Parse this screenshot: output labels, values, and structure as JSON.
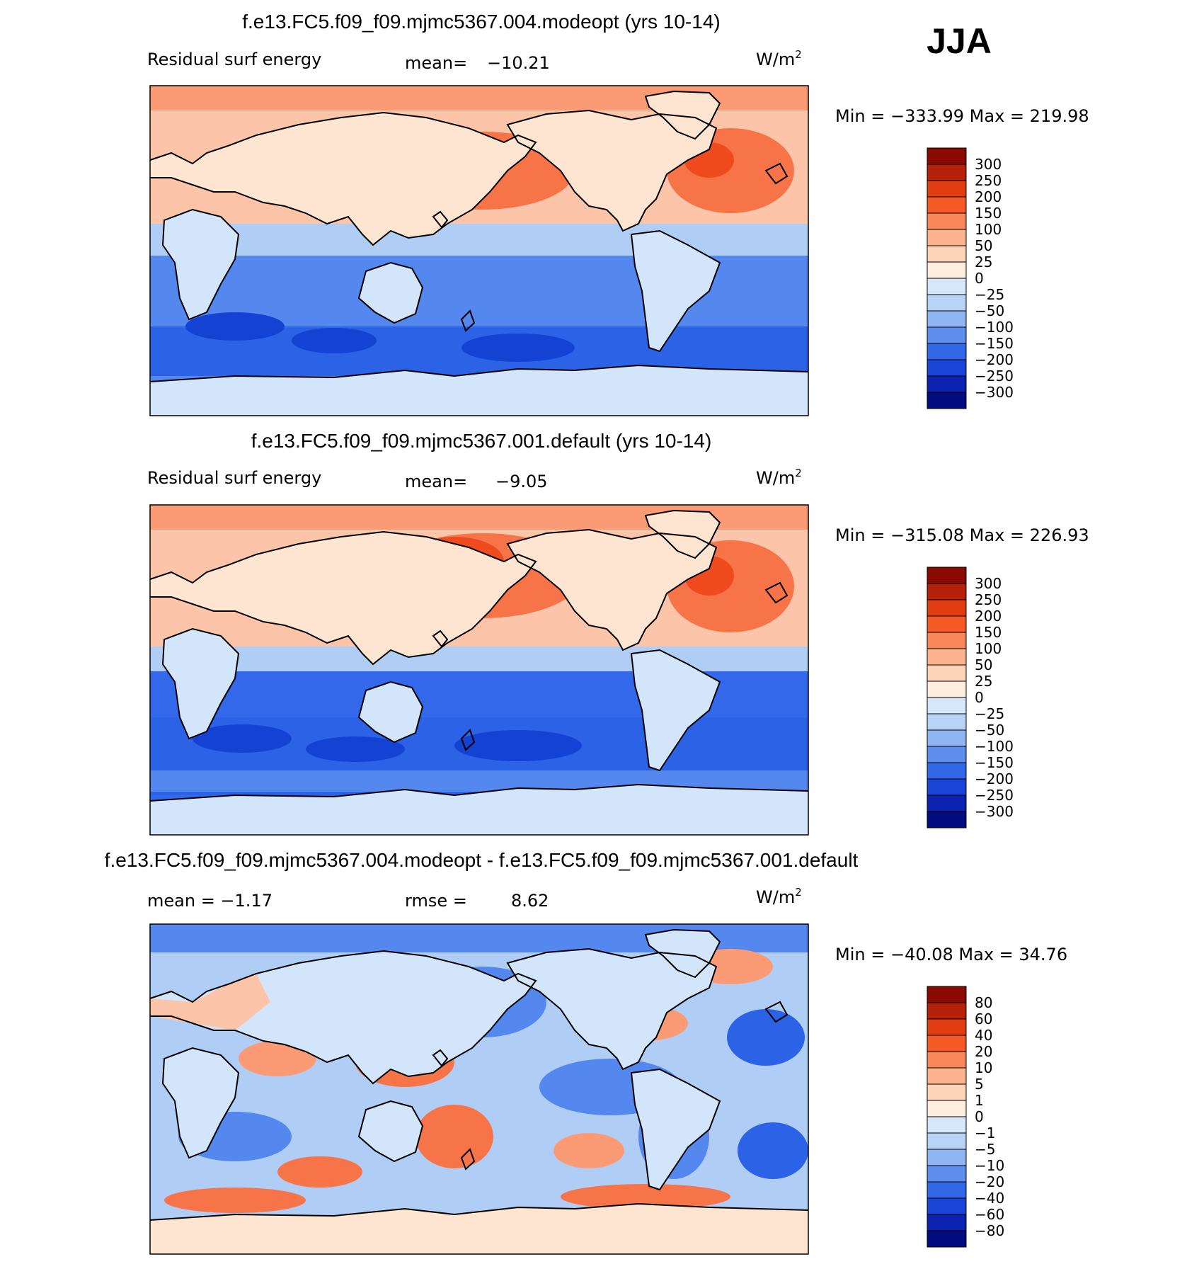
{
  "season": "JJA",
  "units_label": "W/m",
  "units_sup": "2",
  "panels": [
    {
      "title": "f.e13.FC5.f09_f09.mjmc5367.004.modeopt (yrs 10-14)",
      "left_label": "Residual surf energy",
      "mid_label": "mean=",
      "mid_value": "−10.21",
      "minmax_label": "Min = −333.99 Max = 219.98"
    },
    {
      "title": "f.e13.FC5.f09_f09.mjmc5367.001.default (yrs 10-14)",
      "left_label": "Residual surf energy",
      "mid_label": "mean=",
      "mid_value": "−9.05",
      "minmax_label": "Min = −315.08 Max = 226.93"
    },
    {
      "title": "f.e13.FC5.f09_f09.mjmc5367.004.modeopt - f.e13.FC5.f09_f09.mjmc5367.001.default",
      "left_label": "mean = −1.17",
      "mid_label": "rmse =",
      "mid_value": "8.62",
      "minmax_label": "Min = −40.08 Max = 34.76"
    }
  ],
  "colors": {
    "warm": [
      "#fde5d1",
      "#fcc4a8",
      "#fb9b76",
      "#f77448",
      "#ef4b1e",
      "#c72b0a",
      "#9b0d02"
    ],
    "cool": [
      "#d2e5fa",
      "#b0cdf6",
      "#88b0f2",
      "#5488ee",
      "#2c63e6",
      "#1442d3",
      "#0a1ea8",
      "#061080"
    ]
  },
  "chart_data": [
    {
      "type": "heatmap",
      "title": "f.e13.FC5.f09_f09.mjmc5367.004.modeopt (yrs 10-14)",
      "variable": "Residual surf energy",
      "units": "W/m2",
      "mean": -10.21,
      "min": -333.99,
      "max": 219.98,
      "colorbar_levels": [
        "300",
        "250",
        "200",
        "150",
        "100",
        "50",
        "25",
        "0",
        "−25",
        "−50",
        "−100",
        "−150",
        "−200",
        "−250",
        "−300"
      ],
      "colorbar_colors": [
        "#8a0a02",
        "#b42108",
        "#e23d12",
        "#f55a26",
        "#f88658",
        "#fcb38f",
        "#fdd3b8",
        "#fdeedd",
        "#d6e7fb",
        "#b9d3f7",
        "#8fb4f3",
        "#5d8eef",
        "#3467e7",
        "#1a44d6",
        "#0c22b0",
        "#040d80"
      ]
    },
    {
      "type": "heatmap",
      "title": "f.e13.FC5.f09_f09.mjmc5367.001.default (yrs 10-14)",
      "variable": "Residual surf energy",
      "units": "W/m2",
      "mean": -9.05,
      "min": -315.08,
      "max": 226.93,
      "colorbar_levels": [
        "300",
        "250",
        "200",
        "150",
        "100",
        "50",
        "25",
        "0",
        "−25",
        "−50",
        "−100",
        "−150",
        "−200",
        "−250",
        "−300"
      ],
      "colorbar_colors": [
        "#8a0a02",
        "#b42108",
        "#e23d12",
        "#f55a26",
        "#f88658",
        "#fcb38f",
        "#fdd3b8",
        "#fdeedd",
        "#d6e7fb",
        "#b9d3f7",
        "#8fb4f3",
        "#5d8eef",
        "#3467e7",
        "#1a44d6",
        "#0c22b0",
        "#040d80"
      ]
    },
    {
      "type": "heatmap",
      "title": "f.e13.FC5.f09_f09.mjmc5367.004.modeopt - f.e13.FC5.f09_f09.mjmc5367.001.default",
      "units": "W/m2",
      "mean": -1.17,
      "rmse": 8.62,
      "min": -40.08,
      "max": 34.76,
      "colorbar_levels": [
        "80",
        "60",
        "40",
        "20",
        "10",
        "5",
        "1",
        "0",
        "−1",
        "−5",
        "−10",
        "−20",
        "−40",
        "−60",
        "−80"
      ],
      "colorbar_colors": [
        "#8a0a02",
        "#b42108",
        "#e23d12",
        "#f55a26",
        "#f88658",
        "#fcb38f",
        "#fdd3b8",
        "#fdeedd",
        "#d6e7fb",
        "#b9d3f7",
        "#8fb4f3",
        "#5d8eef",
        "#3467e7",
        "#1a44d6",
        "#0c22b0",
        "#040d80"
      ]
    }
  ]
}
